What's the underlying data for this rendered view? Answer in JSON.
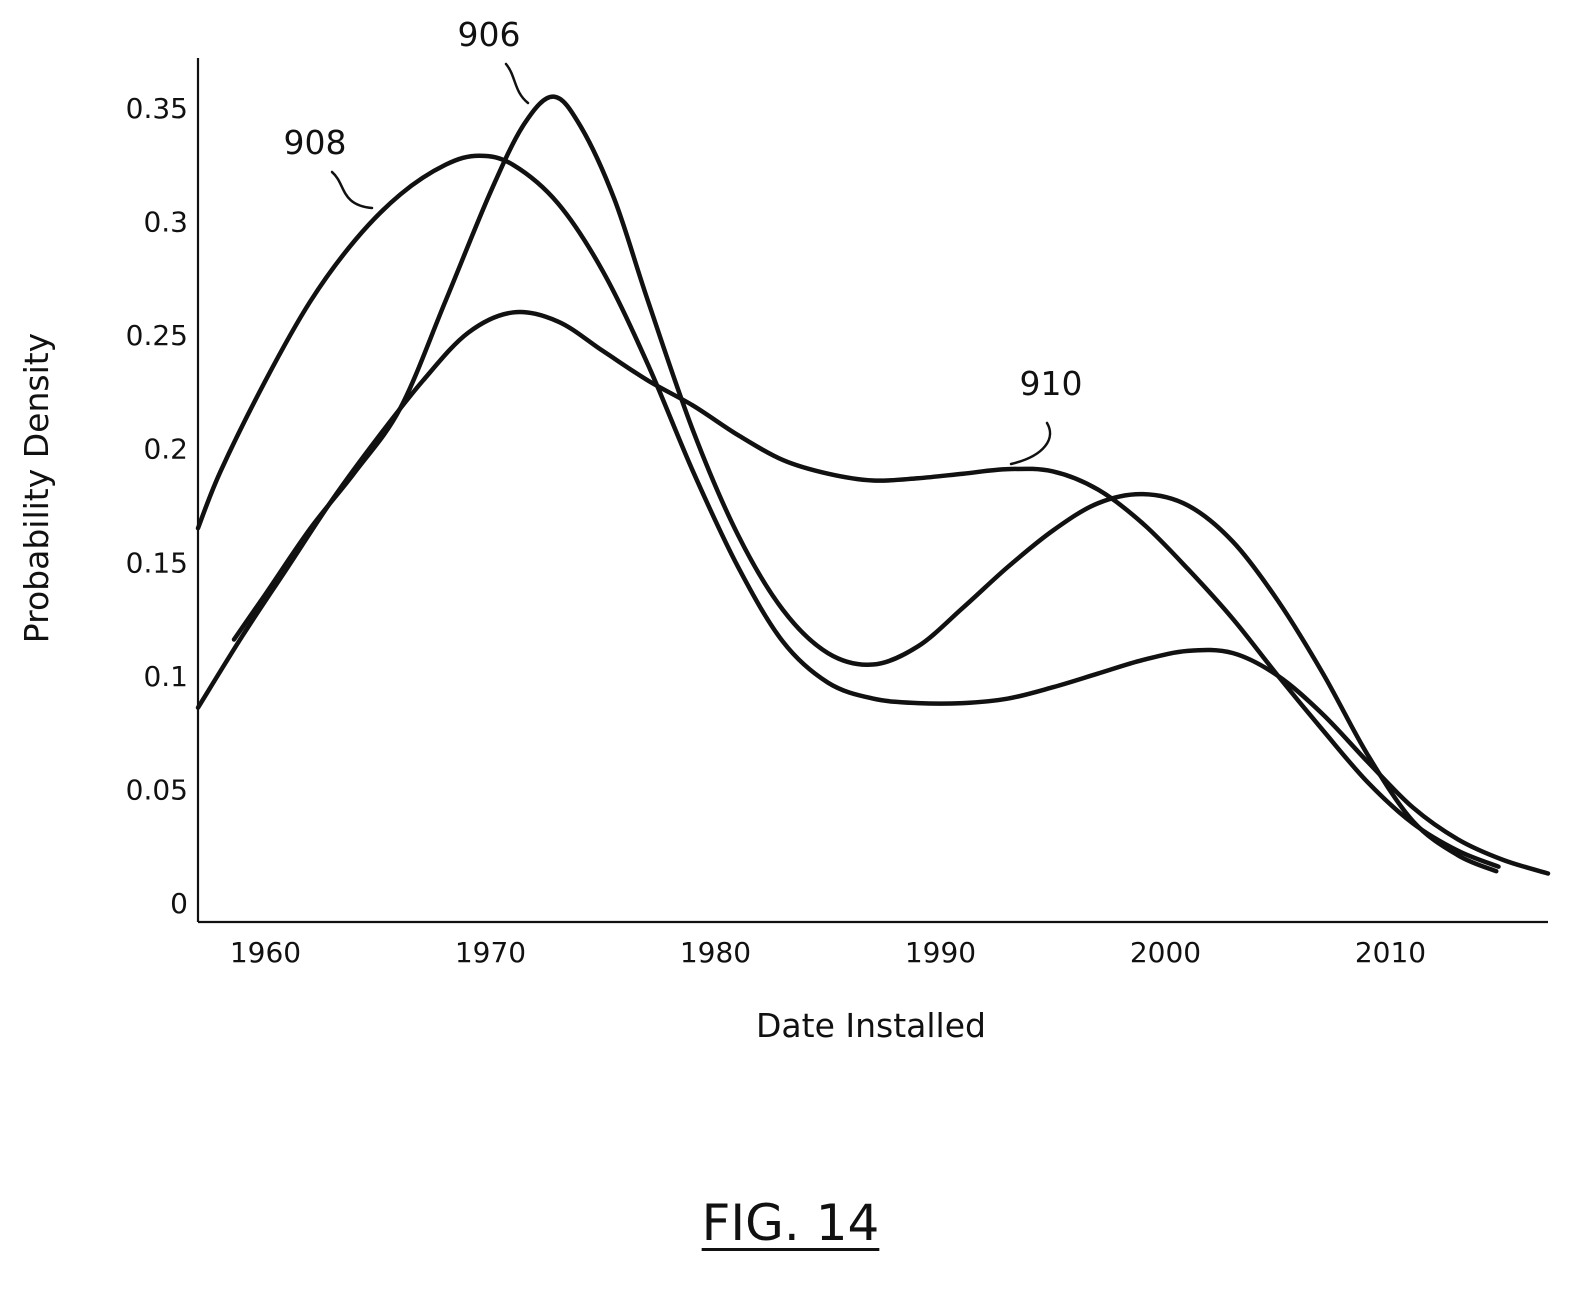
{
  "chart_data": {
    "type": "line",
    "title": "",
    "xlabel": "Date Installed",
    "ylabel": "Probability Density",
    "xlim": [
      1957,
      2017
    ],
    "ylim": [
      0,
      0.38
    ],
    "xticks": [
      1960,
      1970,
      1980,
      1990,
      2000,
      2010
    ],
    "yticks": [
      0,
      0.05,
      0.1,
      0.15,
      0.2,
      0.25,
      0.3,
      0.35
    ],
    "ytick_labels": [
      "0",
      "0.05",
      "0.1",
      "0.15",
      "0.2",
      "0.25",
      "0.3",
      "0.35"
    ],
    "grid": false,
    "legend": "none",
    "color": "#111111",
    "series": [
      {
        "name": "906",
        "points": [
          [
            1958.6,
            0.116
          ],
          [
            1960,
            0.136
          ],
          [
            1962,
            0.165
          ],
          [
            1964,
            0.19
          ],
          [
            1966,
            0.218
          ],
          [
            1968,
            0.265
          ],
          [
            1970,
            0.313
          ],
          [
            1971.5,
            0.343
          ],
          [
            1972.8,
            0.355
          ],
          [
            1974,
            0.342
          ],
          [
            1975.5,
            0.31
          ],
          [
            1977,
            0.265
          ],
          [
            1979,
            0.208
          ],
          [
            1981,
            0.162
          ],
          [
            1983,
            0.129
          ],
          [
            1985,
            0.11
          ],
          [
            1987,
            0.105
          ],
          [
            1989,
            0.113
          ],
          [
            1991,
            0.13
          ],
          [
            1993,
            0.148
          ],
          [
            1995,
            0.164
          ],
          [
            1997,
            0.176
          ],
          [
            1999,
            0.18
          ],
          [
            2001,
            0.175
          ],
          [
            2003,
            0.159
          ],
          [
            2005,
            0.133
          ],
          [
            2007,
            0.101
          ],
          [
            2009,
            0.065
          ],
          [
            2011,
            0.036
          ],
          [
            2013,
            0.021
          ],
          [
            2014.7,
            0.014
          ]
        ]
      },
      {
        "name": "908",
        "points": [
          [
            1957,
            0.165
          ],
          [
            1958,
            0.19
          ],
          [
            1960,
            0.23
          ],
          [
            1962,
            0.265
          ],
          [
            1964,
            0.292
          ],
          [
            1966,
            0.312
          ],
          [
            1968,
            0.325
          ],
          [
            1969.5,
            0.329
          ],
          [
            1971,
            0.325
          ],
          [
            1973,
            0.308
          ],
          [
            1975,
            0.278
          ],
          [
            1977,
            0.237
          ],
          [
            1979,
            0.19
          ],
          [
            1981,
            0.148
          ],
          [
            1983,
            0.115
          ],
          [
            1985,
            0.097
          ],
          [
            1987,
            0.09
          ],
          [
            1989,
            0.088
          ],
          [
            1991,
            0.088
          ],
          [
            1993,
            0.09
          ],
          [
            1995,
            0.095
          ],
          [
            1997,
            0.101
          ],
          [
            1999,
            0.107
          ],
          [
            2001,
            0.111
          ],
          [
            2003,
            0.11
          ],
          [
            2005,
            0.1
          ],
          [
            2007,
            0.083
          ],
          [
            2009,
            0.062
          ],
          [
            2011,
            0.042
          ],
          [
            2013,
            0.028
          ],
          [
            2015,
            0.019
          ],
          [
            2017,
            0.013
          ]
        ]
      },
      {
        "name": "910",
        "points": [
          [
            1957,
            0.086
          ],
          [
            1959,
            0.118
          ],
          [
            1961,
            0.148
          ],
          [
            1963,
            0.178
          ],
          [
            1965,
            0.205
          ],
          [
            1967,
            0.23
          ],
          [
            1969,
            0.251
          ],
          [
            1971,
            0.26
          ],
          [
            1973,
            0.256
          ],
          [
            1975,
            0.243
          ],
          [
            1977,
            0.23
          ],
          [
            1979,
            0.219
          ],
          [
            1981,
            0.206
          ],
          [
            1983,
            0.195
          ],
          [
            1985,
            0.189
          ],
          [
            1987,
            0.186
          ],
          [
            1989,
            0.187
          ],
          [
            1991,
            0.189
          ],
          [
            1993,
            0.191
          ],
          [
            1995,
            0.19
          ],
          [
            1997,
            0.182
          ],
          [
            1999,
            0.167
          ],
          [
            2001,
            0.147
          ],
          [
            2003,
            0.125
          ],
          [
            2005,
            0.1
          ],
          [
            2007,
            0.076
          ],
          [
            2009,
            0.053
          ],
          [
            2011,
            0.035
          ],
          [
            2013,
            0.023
          ],
          [
            2014.8,
            0.016
          ]
        ]
      }
    ],
    "annotations": [
      {
        "series": "906",
        "label": "906"
      },
      {
        "series": "908",
        "label": "908"
      },
      {
        "series": "910",
        "label": "910"
      }
    ]
  },
  "figure_caption": "FIG. 14"
}
